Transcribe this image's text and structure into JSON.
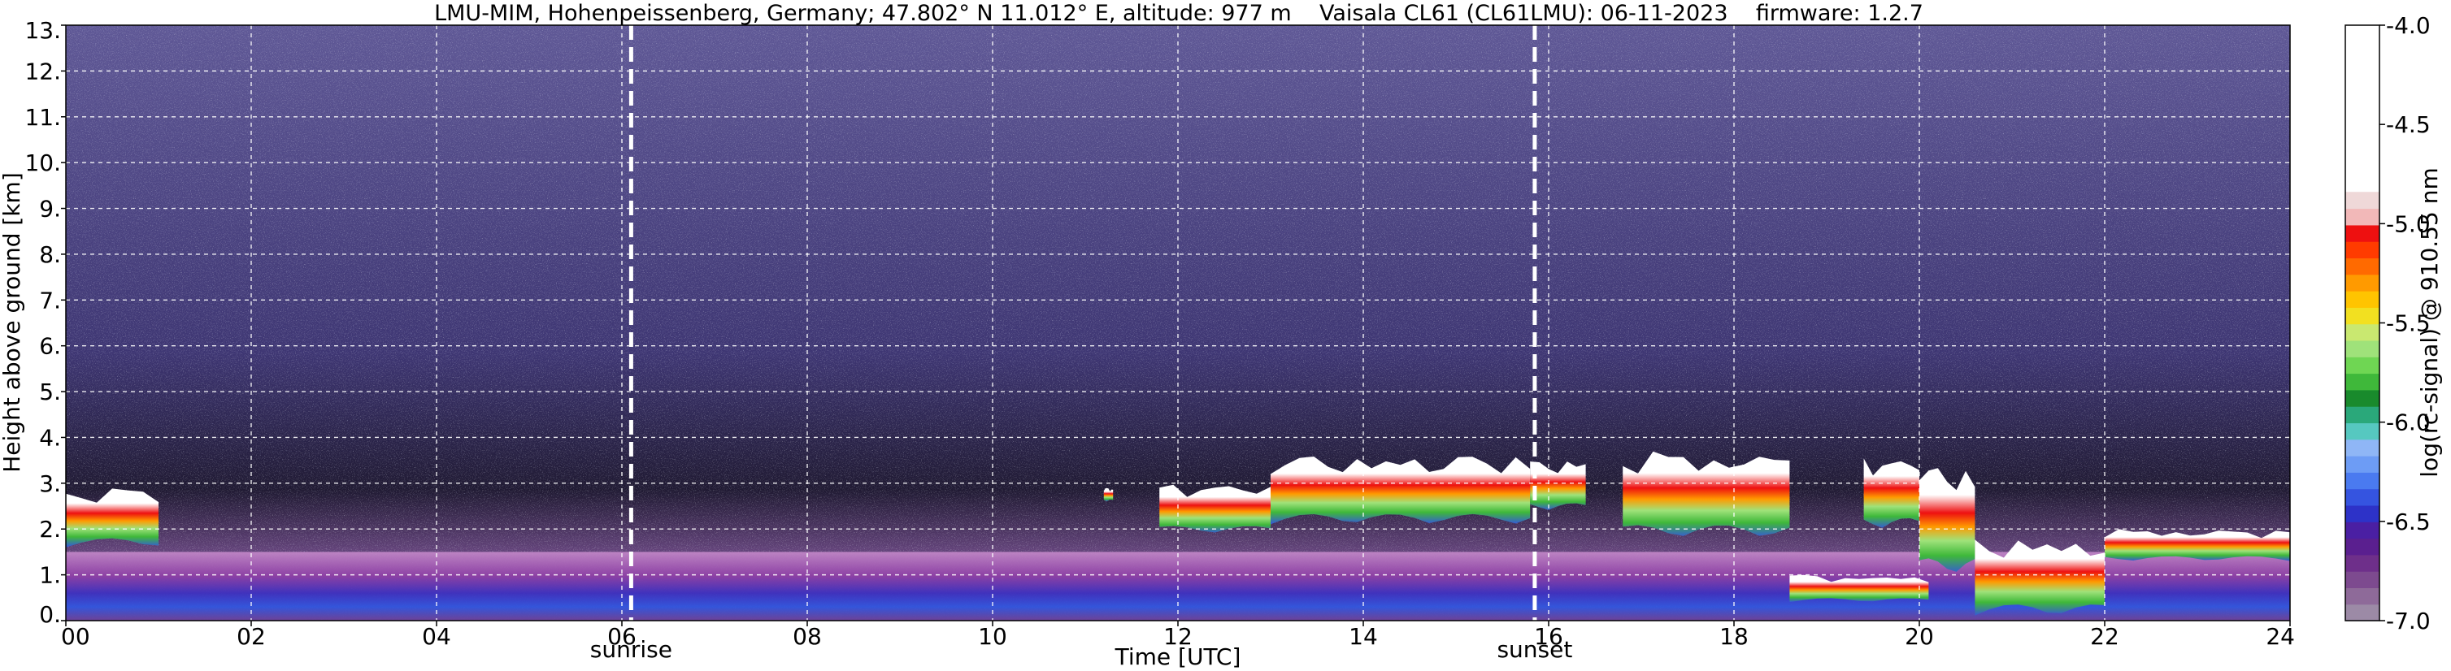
{
  "chart_data": {
    "type": "heatmap",
    "title": "LMU-MIM, Hohenpeissenberg, Germany; 47.802° N 11.012° E, altitude: 977 m    Vaisala CL61 (CL61LMU): 06-11-2023    firmware: 1.2.7",
    "xlabel": "Time [UTC]",
    "ylabel": "Height above ground [km]",
    "xlim": [
      0,
      24
    ],
    "ylim": [
      0,
      13
    ],
    "x_ticks": [
      "00",
      "02",
      "04",
      "06",
      "08",
      "10",
      "12",
      "14",
      "16",
      "18",
      "20",
      "22",
      "24"
    ],
    "y_ticks": [
      "0.",
      "1.",
      "2.",
      "3.",
      "4.",
      "5.",
      "6.",
      "7.",
      "8.",
      "9.",
      "10.",
      "11.",
      "12.",
      "13."
    ],
    "grid": true,
    "markers": [
      {
        "label": "sunrise",
        "time_utc": 6.1
      },
      {
        "label": "sunset",
        "time_utc": 15.85
      }
    ],
    "colorbar": {
      "label": "log(rc-signal) @ 910.55 nm",
      "range": [
        -7.0,
        -4.0
      ],
      "ticks": [
        "-7.0",
        "-6.5",
        "-6.0",
        "-5.5",
        "-5.0",
        "-4.5",
        "-4.0"
      ],
      "colors": [
        "#9c8aa6",
        "#8e6a99",
        "#7d4a8f",
        "#6e2f8a",
        "#5a1f8f",
        "#4a1fa3",
        "#2d32c8",
        "#3554e0",
        "#4a7af0",
        "#6d9cf5",
        "#8fb6f6",
        "#56c8c0",
        "#2aa87a",
        "#198a2c",
        "#3fb83a",
        "#6fd653",
        "#9fe27a",
        "#c9e870",
        "#f2e020",
        "#ffc400",
        "#ff9a00",
        "#ff6a00",
        "#ff3b00",
        "#ee1010",
        "#f2b8b8",
        "#efd8d8",
        "#ffffff"
      ]
    },
    "cloud_layers": [
      {
        "t_start": 0.0,
        "t_end": 1.0,
        "base_km": 1.6,
        "top_km": 2.9
      },
      {
        "t_start": 11.2,
        "t_end": 11.3,
        "base_km": 2.6,
        "top_km": 2.9
      },
      {
        "t_start": 11.8,
        "t_end": 13.0,
        "base_km": 1.9,
        "top_km": 3.0
      },
      {
        "t_start": 13.0,
        "t_end": 15.8,
        "base_km": 2.1,
        "top_km": 3.6
      },
      {
        "t_start": 15.8,
        "t_end": 16.4,
        "base_km": 2.4,
        "top_km": 3.5
      },
      {
        "t_start": 16.8,
        "t_end": 18.6,
        "base_km": 1.8,
        "top_km": 3.7
      },
      {
        "t_start": 18.6,
        "t_end": 20.1,
        "base_km": 0.4,
        "top_km": 1.0
      },
      {
        "t_start": 19.4,
        "t_end": 20.0,
        "base_km": 2.0,
        "top_km": 3.6
      },
      {
        "t_start": 20.0,
        "t_end": 20.6,
        "base_km": 1.0,
        "top_km": 3.4
      },
      {
        "t_start": 20.6,
        "t_end": 22.0,
        "base_km": 0.1,
        "top_km": 1.8
      },
      {
        "t_start": 22.0,
        "t_end": 24.0,
        "base_km": 1.3,
        "top_km": 2.0
      }
    ],
    "boundary_layer": {
      "top_km": 1.5
    }
  }
}
